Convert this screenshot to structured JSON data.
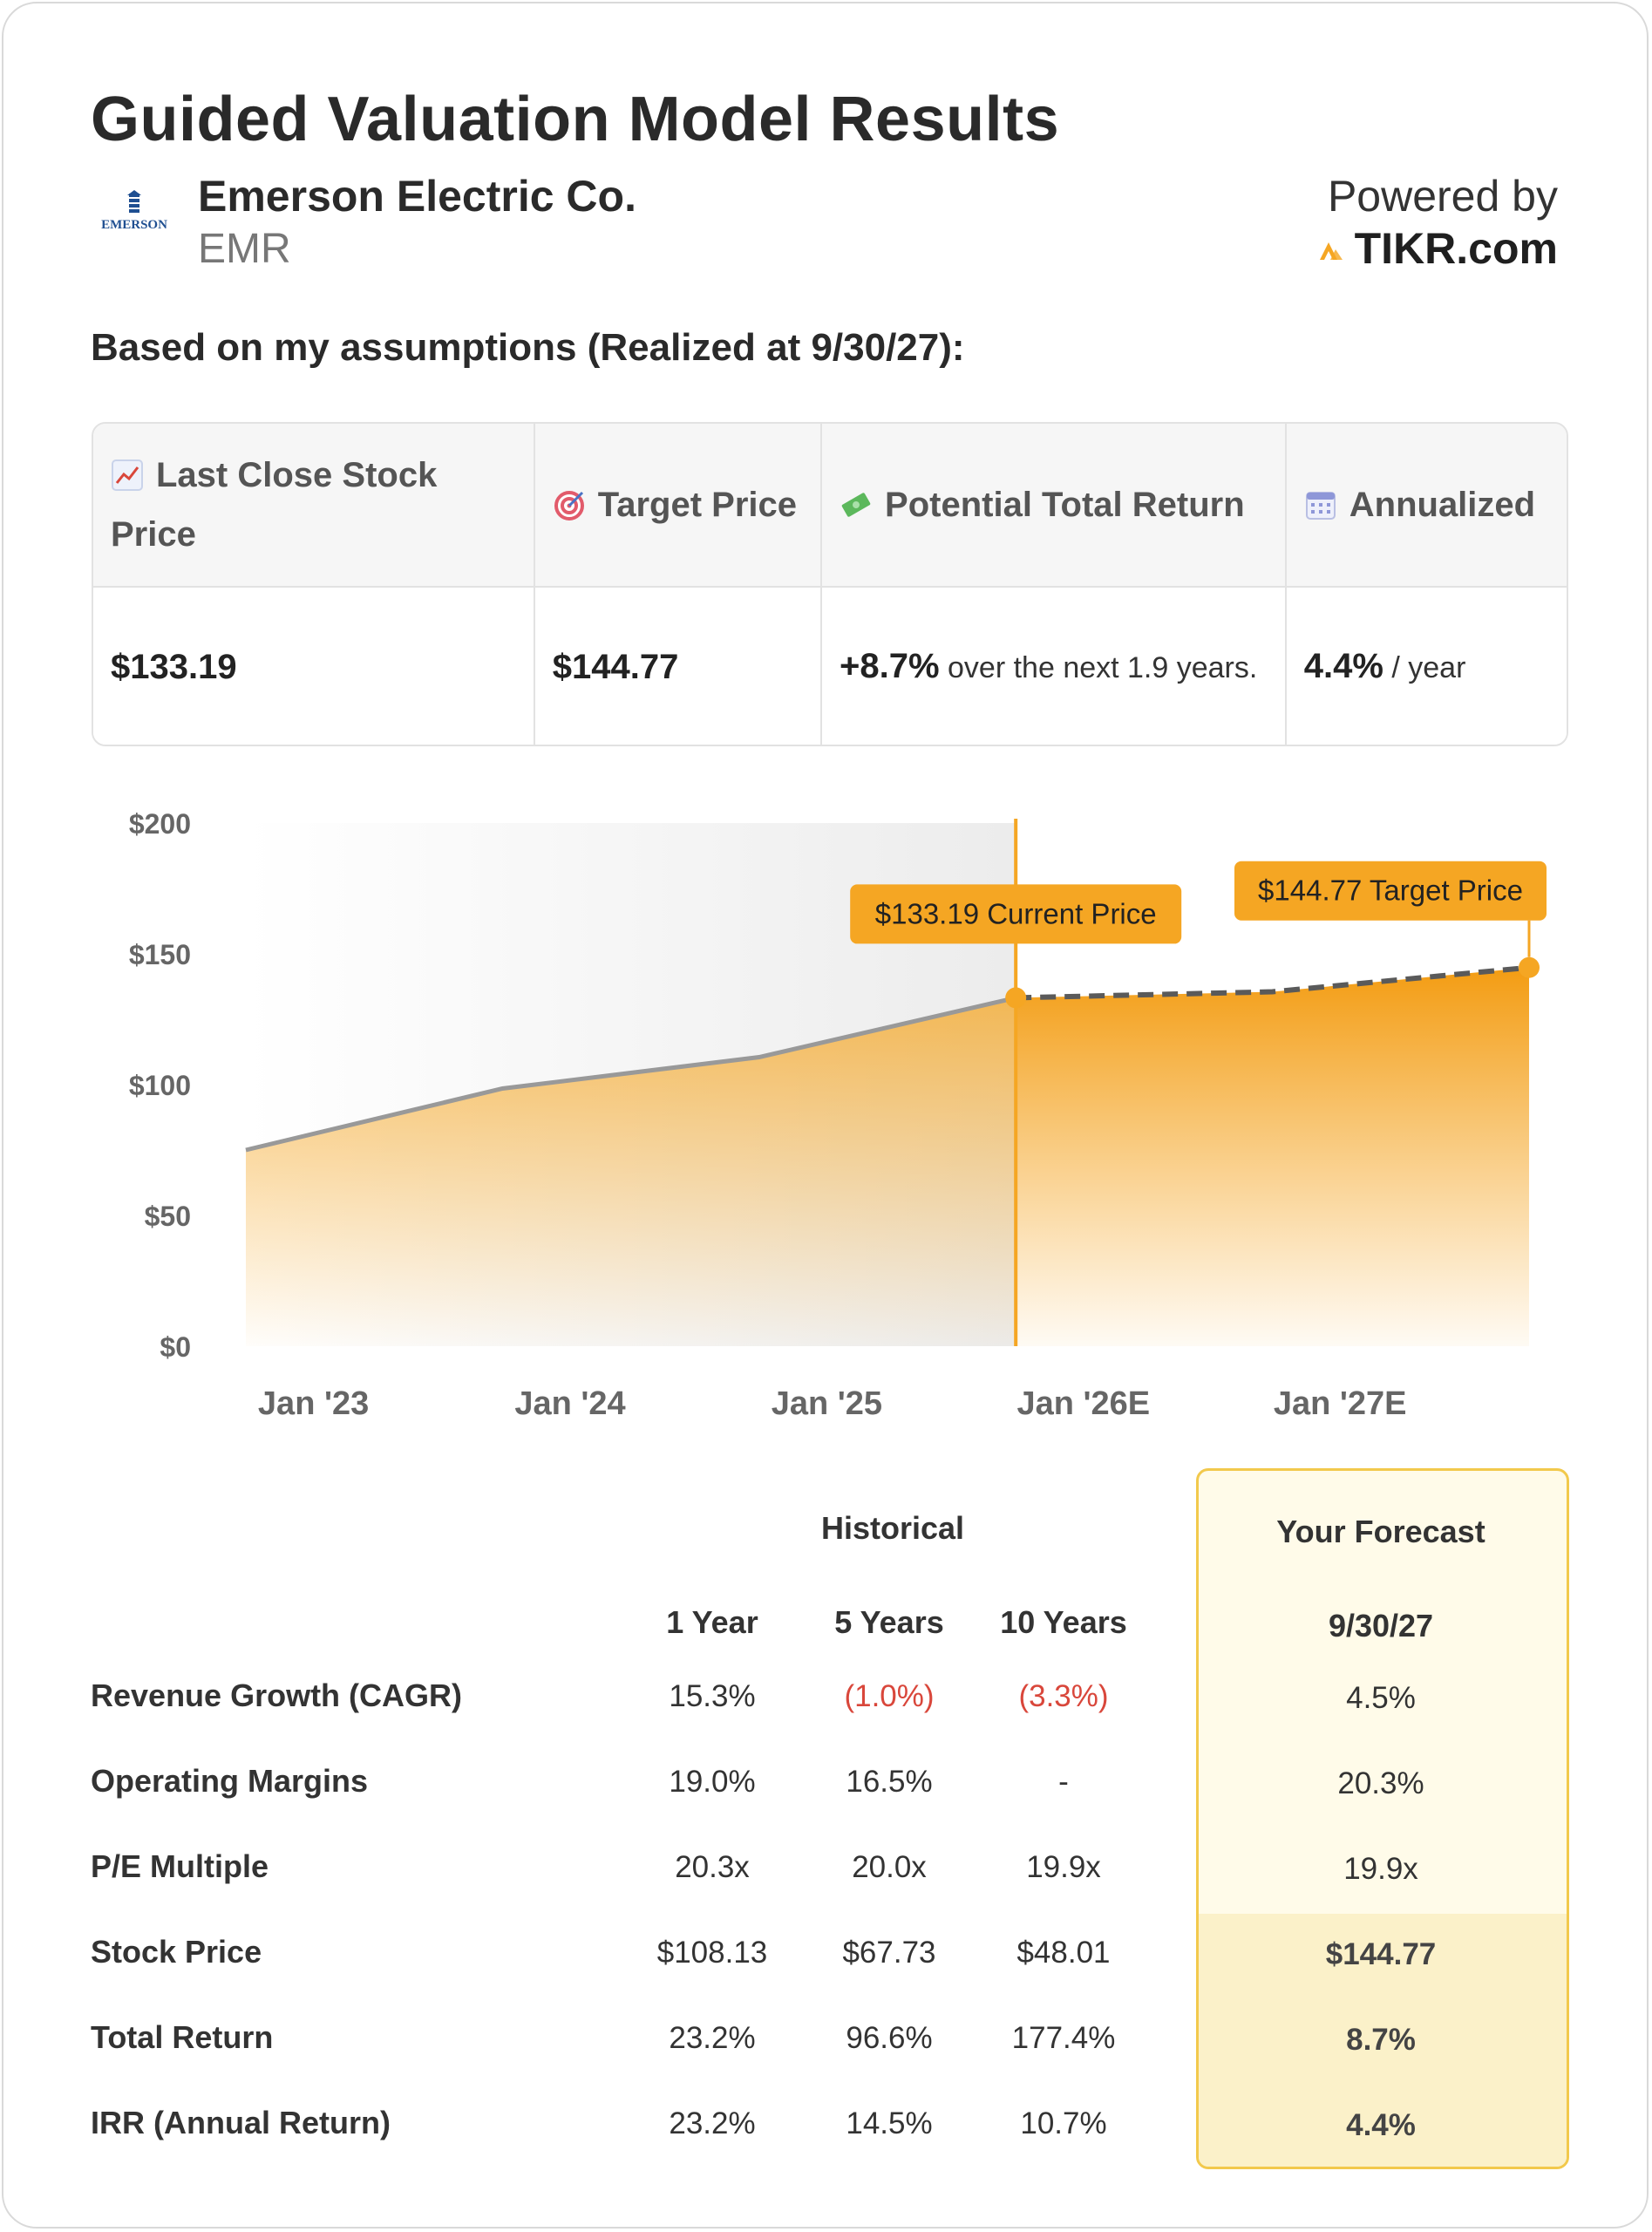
{
  "header": {
    "title": "Guided Valuation Model Results",
    "logo_text": "EMERSON",
    "company_name": "Emerson Electric Co.",
    "ticker": "EMR",
    "powered_by": "Powered by",
    "brand": "TIKR.com",
    "subheading": "Based on my assumptions (Realized at 9/30/27):"
  },
  "summary": {
    "headers": {
      "last_close": "Last Close Stock Price",
      "target": "Target Price",
      "potential": "Potential Total Return",
      "annualized": "Annualized"
    },
    "icons": [
      "chart-up-icon",
      "target-icon",
      "money-icon",
      "calendar-icon"
    ],
    "values": {
      "last_close": "$133.19",
      "target": "$144.77",
      "return_pct": "+8.7%",
      "return_text": "over the next 1.9 years.",
      "annualized_pct": "4.4%",
      "annualized_text": "/ year"
    }
  },
  "chart_data": {
    "type": "area",
    "x_tick_labels": [
      "Jan '23",
      "Jan '24",
      "Jan '25",
      "Jan '26E",
      "Jan '27E"
    ],
    "y_tick_labels": [
      "$200",
      "$150",
      "$100",
      "$50",
      "$0"
    ],
    "ylim": [
      0,
      200
    ],
    "y_ticks": [
      200,
      150,
      100,
      50,
      0
    ],
    "xlim": [
      "2022-10",
      "2027-10"
    ],
    "series": [
      {
        "kind": "historical",
        "points": [
          {
            "x": "2022-10",
            "y": 75
          },
          {
            "x": "2023-10",
            "y": 98.5
          },
          {
            "x": "2024-10",
            "y": 110.5
          },
          {
            "x": "2025-10",
            "y": 133.19
          }
        ]
      },
      {
        "kind": "forecast",
        "points": [
          {
            "x": "2025-10",
            "y": 133.19
          },
          {
            "x": "2026-10",
            "y": 135.5
          },
          {
            "x": "2027-10",
            "y": 144.77
          }
        ]
      }
    ],
    "annotations": [
      {
        "label": "$133.19 Current Price",
        "x": "2025-10",
        "y": 133.19
      },
      {
        "label": "$144.77 Target Price",
        "x": "2027-10",
        "y": 144.77
      }
    ],
    "colors": {
      "accent": "#f5a623",
      "historical_line": "#999999",
      "forecast_line": "#5a5a5a"
    }
  },
  "table": {
    "historical_header": "Historical",
    "forecast_header": "Your Forecast",
    "columns": [
      "1 Year",
      "5 Years",
      "10 Years"
    ],
    "forecast_date": "9/30/27",
    "rows": [
      {
        "label": "Revenue Growth (CAGR)",
        "values": [
          "15.3%",
          "(1.0%)",
          "(3.3%)"
        ],
        "forecast": "4.5%"
      },
      {
        "label": "Operating Margins",
        "values": [
          "19.0%",
          "16.5%",
          "-"
        ],
        "forecast": "20.3%"
      },
      {
        "label": "P/E Multiple",
        "values": [
          "20.3x",
          "20.0x",
          "19.9x"
        ],
        "forecast": "19.9x"
      },
      {
        "label": "Stock Price",
        "values": [
          "$108.13",
          "$67.73",
          "$48.01"
        ],
        "forecast": "$144.77"
      },
      {
        "label": "Total Return",
        "values": [
          "23.2%",
          "96.6%",
          "177.4%"
        ],
        "forecast": "8.7%"
      },
      {
        "label": "IRR (Annual Return)",
        "values": [
          "23.2%",
          "14.5%",
          "10.7%"
        ],
        "forecast": "4.4%"
      }
    ]
  }
}
